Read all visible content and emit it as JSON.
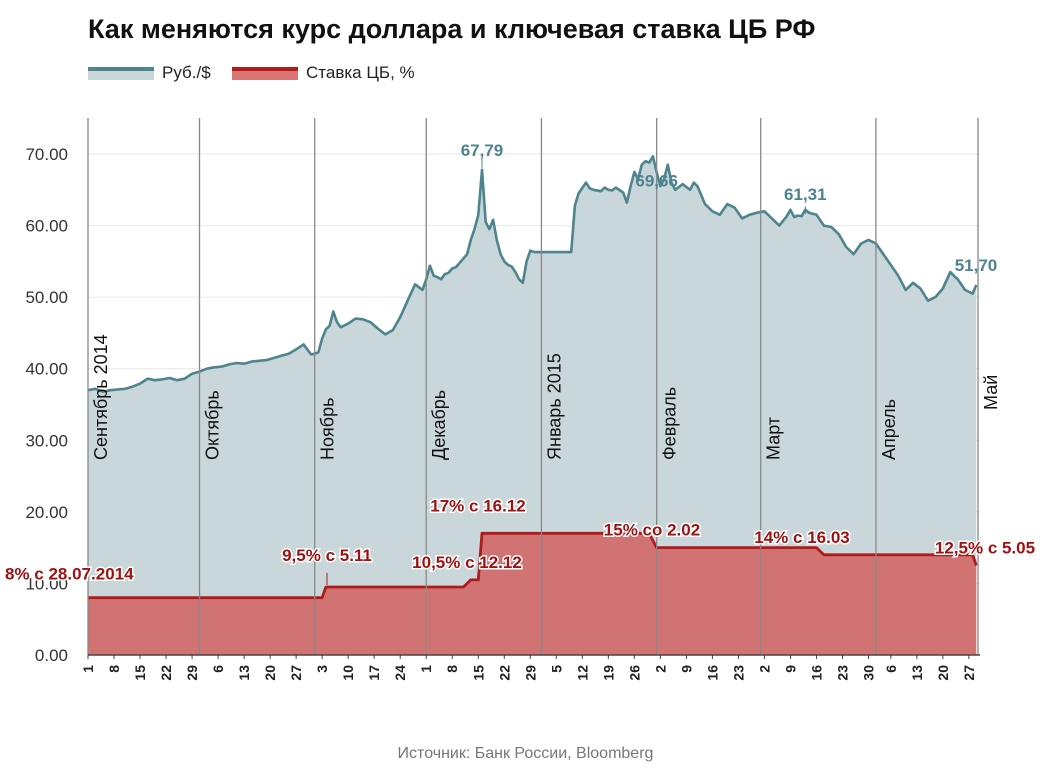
{
  "header": {
    "title": "Как меняются курс доллара и ключевая ставка ЦБ РФ"
  },
  "legend": {
    "rub_label": "Руб./$",
    "rate_label": "Ставка ЦБ, %"
  },
  "source": "Источник: Банк России, Bloomberg",
  "colors": {
    "rub_line": "#4e848e",
    "rub_fill": "#c9d6da",
    "rate_line": "#b11a1a",
    "rate_fill": "#d26a6a",
    "grid": "#e6e6e6",
    "month_line": "#888888"
  },
  "chart_data": {
    "type": "area",
    "title": "Как меняются курс доллара и ключевая ставка ЦБ РФ",
    "x_unit": "days since 1 Sep 2014",
    "xlim": [
      0,
      240
    ],
    "ylim": [
      0,
      70
    ],
    "yticks": [
      "0.00",
      "10.00",
      "20.00",
      "30.00",
      "40.00",
      "50.00",
      "60.00",
      "70.00"
    ],
    "ytick_values": [
      0,
      10,
      20,
      30,
      40,
      50,
      60,
      70
    ],
    "months": [
      {
        "day": 0,
        "label": "Сентябрь 2014"
      },
      {
        "day": 30,
        "label": "Октябрь"
      },
      {
        "day": 61,
        "label": "Ноябрь"
      },
      {
        "day": 91,
        "label": "Декабрь"
      },
      {
        "day": 122,
        "label": "Январь 2015"
      },
      {
        "day": 153,
        "label": "Февраль"
      },
      {
        "day": 181,
        "label": "Март"
      },
      {
        "day": 212,
        "label": "Апрель"
      },
      {
        "day": 242,
        "label": "Май"
      }
    ],
    "xticks": [
      {
        "day": 0,
        "label": "1"
      },
      {
        "day": 7,
        "label": "8"
      },
      {
        "day": 14,
        "label": "15"
      },
      {
        "day": 21,
        "label": "22"
      },
      {
        "day": 28,
        "label": "29"
      },
      {
        "day": 35,
        "label": "6"
      },
      {
        "day": 42,
        "label": "13"
      },
      {
        "day": 49,
        "label": "20"
      },
      {
        "day": 56,
        "label": "27"
      },
      {
        "day": 63,
        "label": "3"
      },
      {
        "day": 70,
        "label": "10"
      },
      {
        "day": 77,
        "label": "17"
      },
      {
        "day": 84,
        "label": "24"
      },
      {
        "day": 91,
        "label": "1"
      },
      {
        "day": 98,
        "label": "8"
      },
      {
        "day": 105,
        "label": "15"
      },
      {
        "day": 112,
        "label": "22"
      },
      {
        "day": 119,
        "label": "29"
      },
      {
        "day": 126,
        "label": "5"
      },
      {
        "day": 133,
        "label": "12"
      },
      {
        "day": 140,
        "label": "19"
      },
      {
        "day": 147,
        "label": "26"
      },
      {
        "day": 154,
        "label": "2"
      },
      {
        "day": 161,
        "label": "9"
      },
      {
        "day": 168,
        "label": "16"
      },
      {
        "day": 175,
        "label": "23"
      },
      {
        "day": 182,
        "label": "2"
      },
      {
        "day": 189,
        "label": "9"
      },
      {
        "day": 196,
        "label": "16"
      },
      {
        "day": 203,
        "label": "23"
      },
      {
        "day": 210,
        "label": "30"
      },
      {
        "day": 216,
        "label": "6"
      },
      {
        "day": 223,
        "label": "13"
      },
      {
        "day": 230,
        "label": "20"
      },
      {
        "day": 237,
        "label": "27"
      }
    ],
    "series": [
      {
        "name": "Руб./$",
        "x": [
          0,
          2,
          4,
          6,
          8,
          10,
          12,
          14,
          16,
          18,
          20,
          22,
          24,
          26,
          28,
          30,
          32,
          34,
          36,
          38,
          40,
          42,
          44,
          46,
          48,
          50,
          52,
          54,
          56,
          58,
          60,
          61,
          62,
          63,
          64,
          65,
          66,
          67,
          68,
          70,
          72,
          74,
          76,
          78,
          80,
          82,
          84,
          86,
          88,
          90,
          91,
          92,
          93,
          94,
          95,
          96,
          97,
          98,
          99,
          100,
          102,
          103,
          104,
          105,
          106,
          107,
          108,
          109,
          110,
          111,
          112,
          113,
          114,
          115,
          116,
          117,
          118,
          119,
          120,
          121,
          122,
          124,
          126,
          128,
          130,
          131,
          132,
          134,
          135,
          136,
          138,
          139,
          140,
          141,
          142,
          144,
          145,
          146,
          147,
          148,
          149,
          150,
          151,
          152,
          153,
          154,
          155,
          156,
          157,
          158,
          160,
          162,
          163,
          164,
          166,
          168,
          170,
          172,
          174,
          176,
          178,
          180,
          182,
          184,
          186,
          188,
          189,
          190,
          191,
          192,
          193,
          194,
          196,
          198,
          200,
          202,
          204,
          206,
          208,
          210,
          212,
          214,
          216,
          218,
          220,
          222,
          224,
          226,
          228,
          230,
          232,
          234,
          236,
          238,
          239
        ],
        "values": [
          37.0,
          37.2,
          36.8,
          37.0,
          37.1,
          37.2,
          37.5,
          37.9,
          38.6,
          38.4,
          38.5,
          38.7,
          38.4,
          38.6,
          39.3,
          39.6,
          40.0,
          40.2,
          40.3,
          40.6,
          40.8,
          40.7,
          41.0,
          41.1,
          41.2,
          41.5,
          41.8,
          42.1,
          42.7,
          43.4,
          42.0,
          42.1,
          42.3,
          44.2,
          45.5,
          46.0,
          48.0,
          46.5,
          45.8,
          46.3,
          47.0,
          46.9,
          46.5,
          45.6,
          44.8,
          45.4,
          47.2,
          49.5,
          51.8,
          51.0,
          52.5,
          54.4,
          53.0,
          52.8,
          52.5,
          53.2,
          53.4,
          54.0,
          54.2,
          54.8,
          56.0,
          58.0,
          59.5,
          61.5,
          67.79,
          60.5,
          59.5,
          60.8,
          58.0,
          56.0,
          55.0,
          54.5,
          54.3,
          53.5,
          52.5,
          52.0,
          55.0,
          56.5,
          56.3,
          56.3,
          56.3,
          56.3,
          56.3,
          56.3,
          56.3,
          62.8,
          64.5,
          66.0,
          65.2,
          65.0,
          64.8,
          65.3,
          65.0,
          64.9,
          65.3,
          64.6,
          63.2,
          65.5,
          67.5,
          66.5,
          68.5,
          69.0,
          68.8,
          69.66,
          67.5,
          65.5,
          66.5,
          68.5,
          66.0,
          65.0,
          65.8,
          65.0,
          66.0,
          65.5,
          63.0,
          62.0,
          61.5,
          63.0,
          62.5,
          61.0,
          61.5,
          61.8,
          62.0,
          61.0,
          60.0,
          61.3,
          62.2,
          61.2,
          61.4,
          61.31,
          62.2,
          61.8,
          61.5,
          60.0,
          59.8,
          58.8,
          57.0,
          56.0,
          57.5,
          58.0,
          57.5,
          56.0,
          54.5,
          53.0,
          51.0,
          52.0,
          51.2,
          49.5,
          50.0,
          51.2,
          53.5,
          52.5,
          51.0,
          50.5,
          51.7
        ]
      },
      {
        "name": "Ставка ЦБ, %",
        "x": [
          0,
          63,
          64,
          65,
          101,
          103,
          105,
          106,
          151,
          152,
          153,
          196,
          197,
          198,
          238,
          239
        ],
        "values": [
          8,
          8,
          9.5,
          9.5,
          9.5,
          10.5,
          10.5,
          17,
          17,
          16,
          15,
          15,
          14.5,
          14,
          14,
          12.5
        ]
      }
    ],
    "rub_annotations": [
      {
        "day": 106,
        "value": 67.79,
        "label": "67,79"
      },
      {
        "day": 153,
        "value": 69.66,
        "label": "69,66"
      },
      {
        "day": 193,
        "value": 61.31,
        "label": "61,31"
      },
      {
        "day": 239,
        "value": 51.7,
        "label": "51,70"
      }
    ],
    "rate_annotations": [
      {
        "day": 0,
        "value": 8,
        "label": "8% с 28.07.2014"
      },
      {
        "day": 64,
        "value": 9.5,
        "label": "9,5% с 5.11"
      },
      {
        "day": 103,
        "value": 10.5,
        "label": "10,5% с 12.12"
      },
      {
        "day": 106,
        "value": 17,
        "label": "17% с 16.12"
      },
      {
        "day": 153,
        "value": 15,
        "label": "15% со 2.02"
      },
      {
        "day": 196,
        "value": 14,
        "label": "14% с 16.03"
      },
      {
        "day": 239,
        "value": 12.5,
        "label": "12,5% с 5.05"
      }
    ]
  }
}
